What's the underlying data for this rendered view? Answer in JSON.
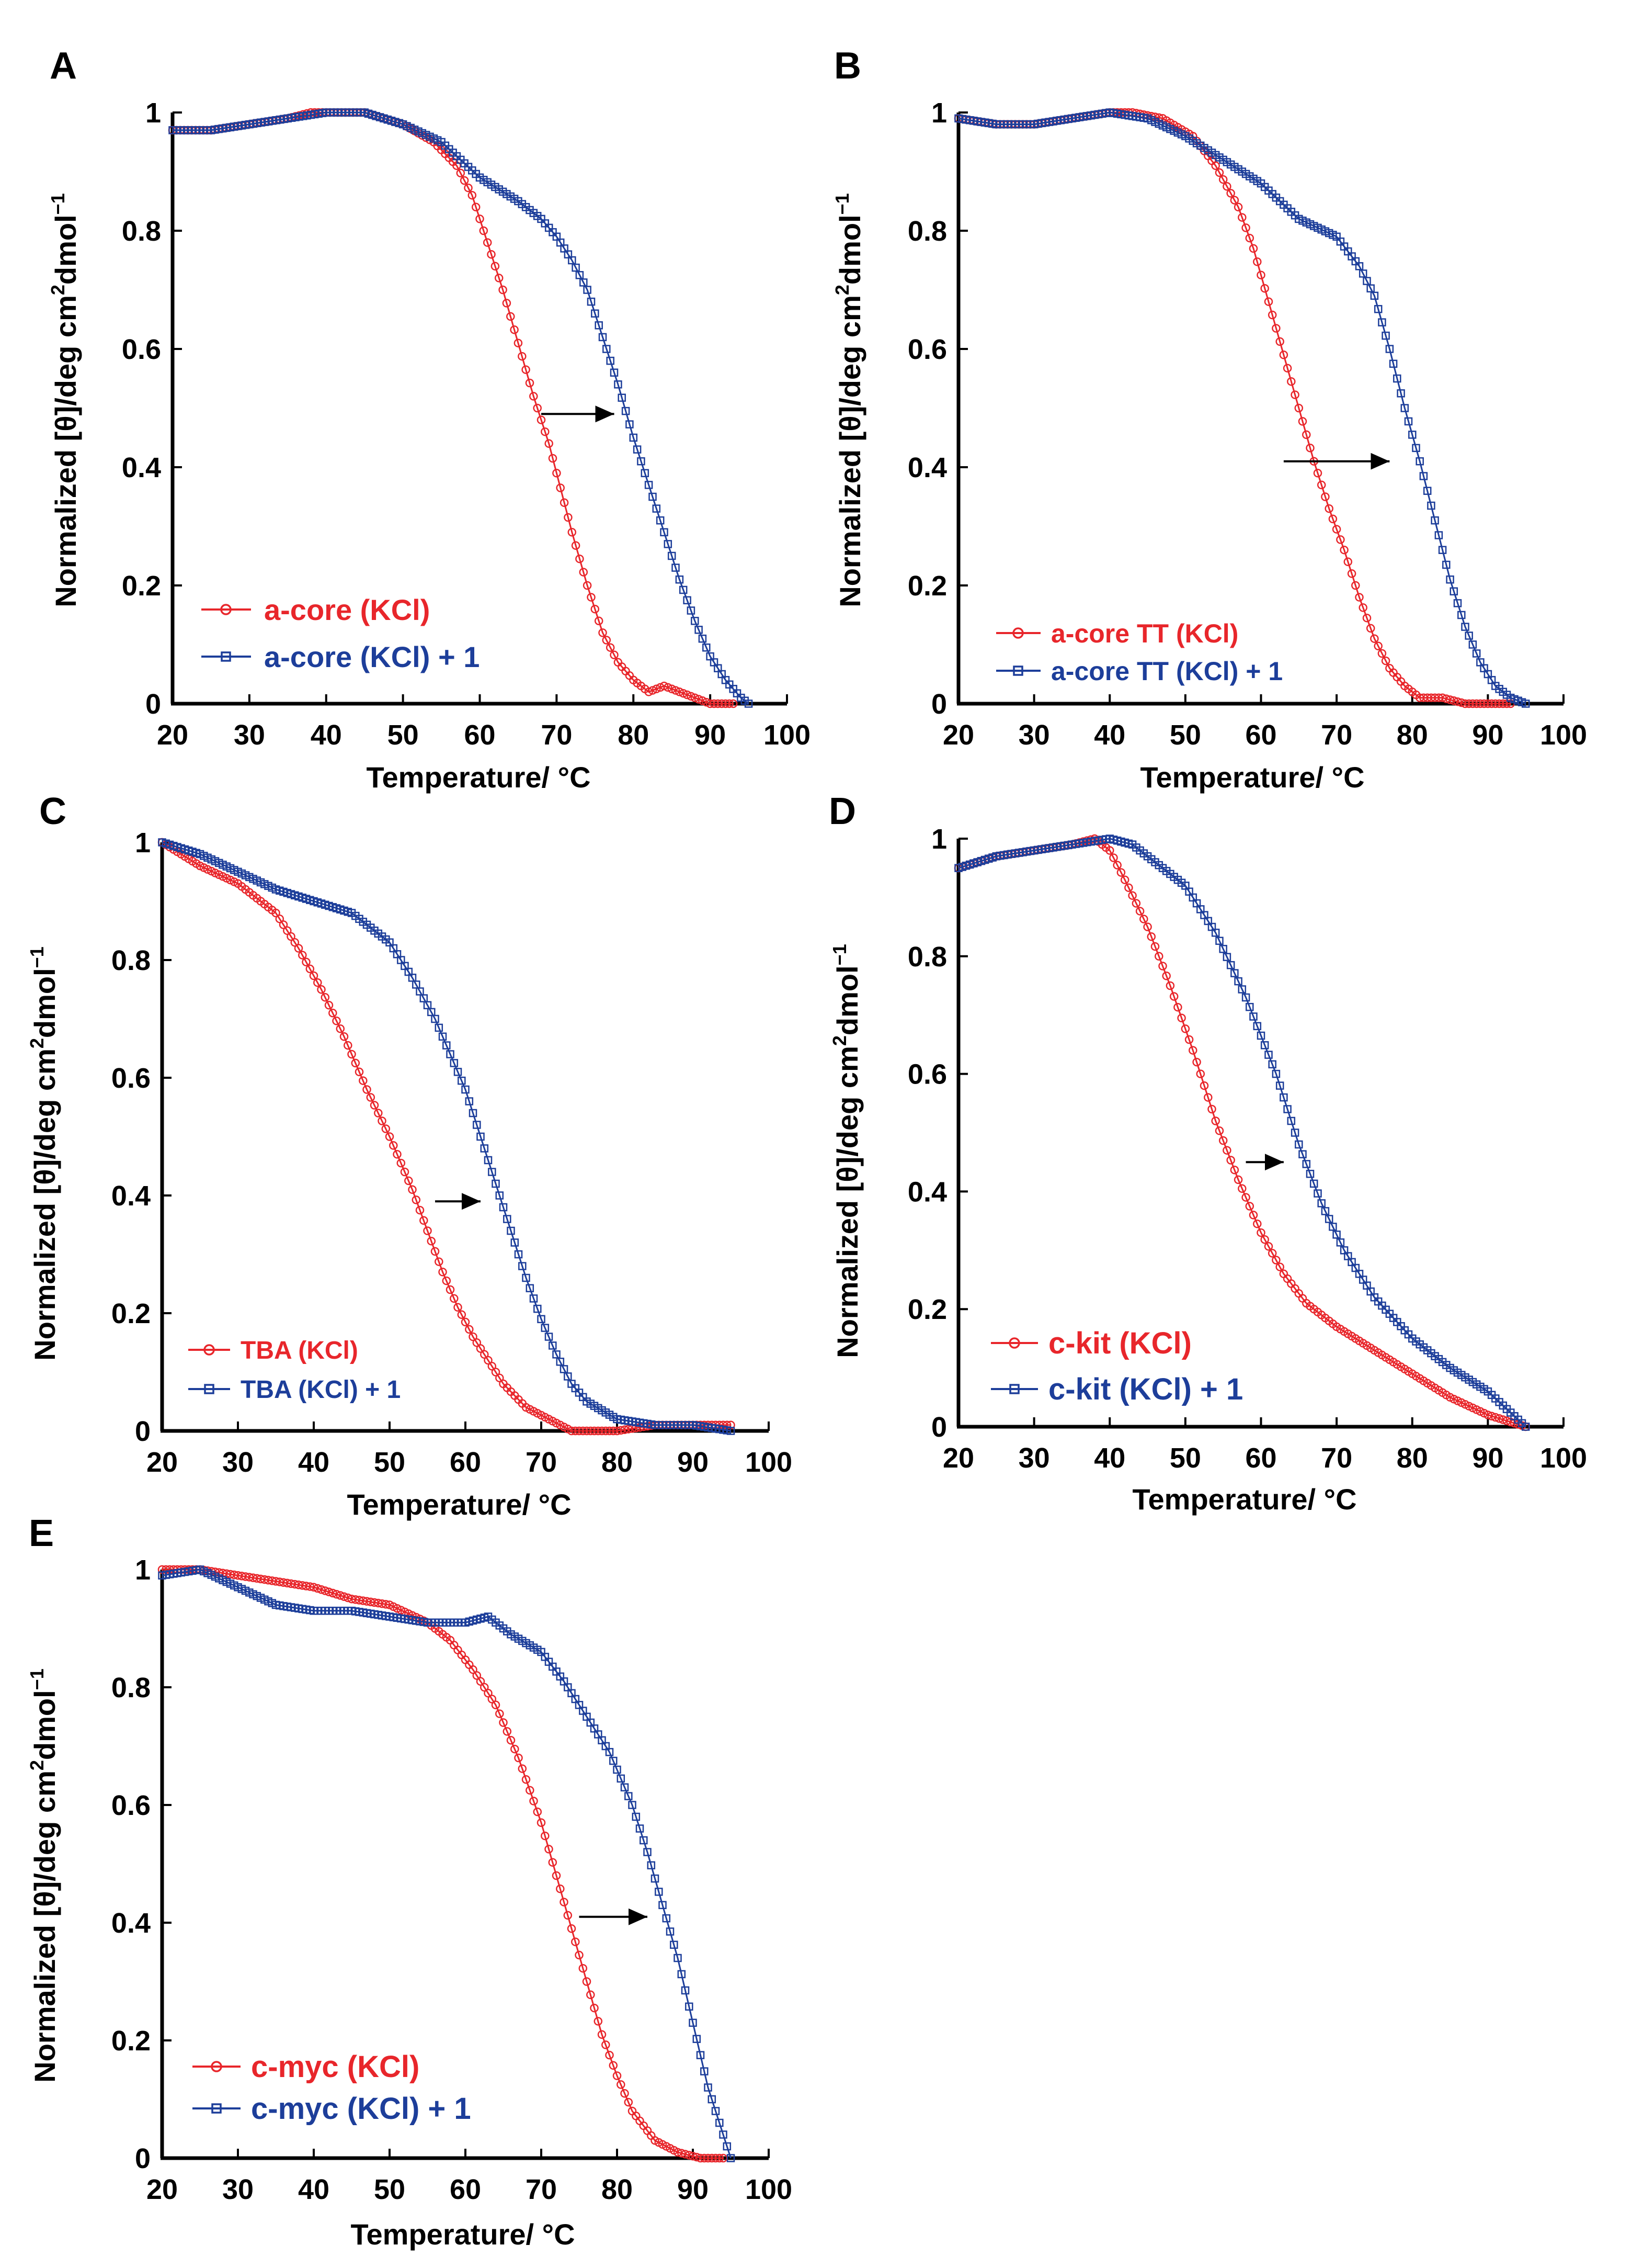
{
  "figure": {
    "y_label_main": "Normalized [θ]/deg cm",
    "y_label_sup1": "2",
    "y_label_mid": "dmol",
    "y_label_sup2": "−1",
    "colors": {
      "red": "#e8262b",
      "blue": "#1d3e9a",
      "axis": "#000000"
    }
  },
  "chart_data": [
    {
      "panel": "A",
      "type": "line",
      "xlabel": "Temperature/ °C",
      "ylabel": "Normalized [θ]/deg cm2dmol−1",
      "xlim": [
        20,
        100
      ],
      "ylim": [
        0,
        1
      ],
      "x_ticks": [
        "20",
        "30",
        "40",
        "50",
        "60",
        "70",
        "80",
        "90",
        "100"
      ],
      "y_ticks": [
        "0",
        "0.2",
        "0.4",
        "0.6",
        "0.8",
        "1"
      ],
      "arrow": {
        "from": [
          68,
          0.49
        ],
        "to": [
          77.5,
          0.49
        ]
      },
      "series": [
        {
          "name": "a-core (KCl)",
          "color": "#e8262b",
          "marker": "circle",
          "x": [
            20,
            25,
            30,
            35,
            38,
            40,
            45,
            50,
            54,
            57,
            59,
            61,
            63,
            65,
            67,
            68,
            69,
            70,
            72,
            74,
            76,
            78,
            80,
            82,
            84,
            86,
            88,
            90,
            93
          ],
          "y": [
            0.97,
            0.97,
            0.98,
            0.99,
            1.0,
            1.0,
            1.0,
            0.98,
            0.95,
            0.91,
            0.86,
            0.78,
            0.7,
            0.61,
            0.52,
            0.48,
            0.44,
            0.39,
            0.29,
            0.2,
            0.12,
            0.07,
            0.04,
            0.02,
            0.03,
            0.02,
            0.01,
            0.0,
            0.0
          ]
        },
        {
          "name": "a-core (KCl) + 1",
          "color": "#1d3e9a",
          "marker": "square",
          "x": [
            20,
            25,
            30,
            35,
            40,
            45,
            50,
            55,
            60,
            65,
            68,
            70,
            72,
            74,
            76,
            78,
            80,
            82,
            84,
            86,
            88,
            90,
            92,
            94,
            95
          ],
          "y": [
            0.97,
            0.97,
            0.98,
            0.99,
            1.0,
            1.0,
            0.98,
            0.95,
            0.89,
            0.85,
            0.82,
            0.79,
            0.75,
            0.7,
            0.62,
            0.54,
            0.45,
            0.37,
            0.29,
            0.21,
            0.14,
            0.08,
            0.04,
            0.01,
            0.0
          ]
        }
      ]
    },
    {
      "panel": "B",
      "type": "line",
      "xlabel": "Temperature/ °C",
      "ylabel": "Normalized [θ]/deg cm2dmol−1",
      "xlim": [
        20,
        100
      ],
      "ylim": [
        0,
        1
      ],
      "x_ticks": [
        "20",
        "30",
        "40",
        "50",
        "60",
        "70",
        "80",
        "90",
        "100"
      ],
      "y_ticks": [
        "0",
        "0.2",
        "0.4",
        "0.6",
        "0.8",
        "1"
      ],
      "arrow": {
        "from": [
          63,
          0.41
        ],
        "to": [
          77,
          0.41
        ]
      },
      "series": [
        {
          "name": "a-core TT (KCl)",
          "color": "#e8262b",
          "marker": "circle",
          "x": [
            20,
            25,
            30,
            35,
            40,
            43,
            47,
            51,
            54,
            57,
            59,
            61,
            63,
            65,
            67,
            69,
            71,
            73,
            75,
            77,
            79,
            81,
            84,
            87,
            90,
            93
          ],
          "y": [
            0.99,
            0.98,
            0.98,
            0.99,
            1.0,
            1.0,
            0.99,
            0.96,
            0.91,
            0.84,
            0.77,
            0.68,
            0.59,
            0.5,
            0.41,
            0.33,
            0.26,
            0.18,
            0.11,
            0.06,
            0.03,
            0.01,
            0.01,
            0.0,
            0.0,
            0.0
          ]
        },
        {
          "name": "a-core TT (KCl) + 1",
          "color": "#1d3e9a",
          "marker": "square",
          "x": [
            20,
            25,
            30,
            35,
            40,
            45,
            50,
            55,
            60,
            65,
            70,
            73,
            75,
            77,
            79,
            81,
            83,
            85,
            87,
            89,
            91,
            93,
            95
          ],
          "y": [
            0.99,
            0.98,
            0.98,
            0.99,
            1.0,
            0.99,
            0.96,
            0.92,
            0.88,
            0.82,
            0.79,
            0.74,
            0.69,
            0.6,
            0.5,
            0.41,
            0.31,
            0.21,
            0.13,
            0.07,
            0.03,
            0.01,
            0.0
          ]
        }
      ]
    },
    {
      "panel": "C",
      "type": "line",
      "xlabel": "Temperature/ °C",
      "ylabel": "Normalized [θ]/deg cm2dmol−1",
      "xlim": [
        20,
        100
      ],
      "ylim": [
        0,
        1
      ],
      "x_ticks": [
        "20",
        "30",
        "40",
        "50",
        "60",
        "70",
        "80",
        "90",
        "100"
      ],
      "y_ticks": [
        "0",
        "0.2",
        "0.4",
        "0.6",
        "0.8",
        "1"
      ],
      "arrow": {
        "from": [
          56,
          0.39
        ],
        "to": [
          62,
          0.39
        ]
      },
      "series": [
        {
          "name": "TBA (KCl)",
          "color": "#e8262b",
          "marker": "circle",
          "x": [
            20,
            25,
            30,
            35,
            38,
            41,
            44,
            47,
            50,
            53,
            55,
            57,
            59,
            61,
            63,
            65,
            68,
            71,
            74,
            77,
            80,
            85,
            90,
            95
          ],
          "y": [
            1.0,
            0.96,
            0.93,
            0.88,
            0.82,
            0.75,
            0.67,
            0.58,
            0.5,
            0.41,
            0.34,
            0.27,
            0.21,
            0.16,
            0.12,
            0.08,
            0.04,
            0.02,
            0.0,
            0.0,
            0.0,
            0.01,
            0.01,
            0.01
          ]
        },
        {
          "name": "TBA (KCl) + 1",
          "color": "#1d3e9a",
          "marker": "square",
          "x": [
            20,
            25,
            30,
            35,
            40,
            45,
            50,
            53,
            56,
            58,
            60,
            62,
            64,
            66,
            68,
            70,
            72,
            74,
            76,
            80,
            85,
            90,
            95
          ],
          "y": [
            1.0,
            0.98,
            0.95,
            0.92,
            0.9,
            0.88,
            0.83,
            0.77,
            0.7,
            0.64,
            0.58,
            0.5,
            0.42,
            0.34,
            0.26,
            0.19,
            0.13,
            0.08,
            0.05,
            0.02,
            0.01,
            0.01,
            0.0
          ]
        }
      ]
    },
    {
      "panel": "D",
      "type": "line",
      "xlabel": "Temperature/ °C",
      "ylabel": "Normalized [θ]/deg cm2dmol−1",
      "xlim": [
        20,
        100
      ],
      "ylim": [
        0,
        1
      ],
      "x_ticks": [
        "20",
        "30",
        "40",
        "50",
        "60",
        "70",
        "80",
        "90",
        "100"
      ],
      "y_ticks": [
        "0",
        "0.2",
        "0.4",
        "0.6",
        "0.8",
        "1"
      ],
      "arrow": {
        "from": [
          58,
          0.45
        ],
        "to": [
          63,
          0.45
        ]
      },
      "series": [
        {
          "name": "c-kit (KCl)",
          "color": "#e8262b",
          "marker": "circle",
          "x": [
            20,
            25,
            30,
            35,
            38,
            40,
            42,
            45,
            48,
            51,
            54,
            57,
            60,
            63,
            66,
            70,
            75,
            80,
            85,
            90,
            95
          ],
          "y": [
            0.95,
            0.97,
            0.98,
            0.99,
            1.0,
            0.98,
            0.93,
            0.85,
            0.75,
            0.64,
            0.52,
            0.42,
            0.33,
            0.26,
            0.21,
            0.17,
            0.13,
            0.09,
            0.05,
            0.02,
            0.0
          ]
        },
        {
          "name": "c-kit (KCl) + 1",
          "color": "#1d3e9a",
          "marker": "square",
          "x": [
            20,
            25,
            30,
            35,
            40,
            43,
            46,
            50,
            54,
            58,
            62,
            65,
            68,
            71,
            75,
            80,
            85,
            90,
            95
          ],
          "y": [
            0.95,
            0.97,
            0.98,
            0.99,
            1.0,
            0.99,
            0.96,
            0.92,
            0.84,
            0.73,
            0.6,
            0.48,
            0.38,
            0.3,
            0.22,
            0.15,
            0.1,
            0.06,
            0.0
          ]
        }
      ]
    },
    {
      "panel": "E",
      "type": "line",
      "xlabel": "Temperature/ °C",
      "ylabel": "Normalized [θ]/deg cm2dmol−1",
      "xlim": [
        20,
        100
      ],
      "ylim": [
        0,
        1
      ],
      "x_ticks": [
        "20",
        "30",
        "40",
        "50",
        "60",
        "70",
        "80",
        "90",
        "100"
      ],
      "y_ticks": [
        "0",
        "0.2",
        "0.4",
        "0.6",
        "0.8",
        "1"
      ],
      "arrow": {
        "from": [
          75,
          0.41
        ],
        "to": [
          84,
          0.41
        ]
      },
      "series": [
        {
          "name": "c-myc (KCl)",
          "color": "#e8262b",
          "marker": "circle",
          "x": [
            20,
            25,
            30,
            35,
            40,
            45,
            50,
            55,
            58,
            61,
            64,
            67,
            70,
            72,
            74,
            76,
            78,
            80,
            82,
            85,
            88,
            91,
            94
          ],
          "y": [
            1.0,
            1.0,
            0.99,
            0.98,
            0.97,
            0.95,
            0.94,
            0.91,
            0.88,
            0.83,
            0.77,
            0.68,
            0.57,
            0.48,
            0.39,
            0.3,
            0.21,
            0.14,
            0.08,
            0.03,
            0.01,
            0.0,
            0.0
          ]
        },
        {
          "name": "c-myc (KCl) + 1",
          "color": "#1d3e9a",
          "marker": "square",
          "x": [
            20,
            25,
            30,
            35,
            40,
            45,
            50,
            55,
            60,
            63,
            66,
            70,
            73,
            76,
            79,
            82,
            84,
            86,
            88,
            90,
            92,
            94,
            95
          ],
          "y": [
            0.99,
            1.0,
            0.97,
            0.94,
            0.93,
            0.93,
            0.92,
            0.91,
            0.91,
            0.92,
            0.89,
            0.86,
            0.81,
            0.75,
            0.69,
            0.6,
            0.52,
            0.43,
            0.34,
            0.23,
            0.12,
            0.04,
            0.0
          ]
        }
      ]
    }
  ]
}
